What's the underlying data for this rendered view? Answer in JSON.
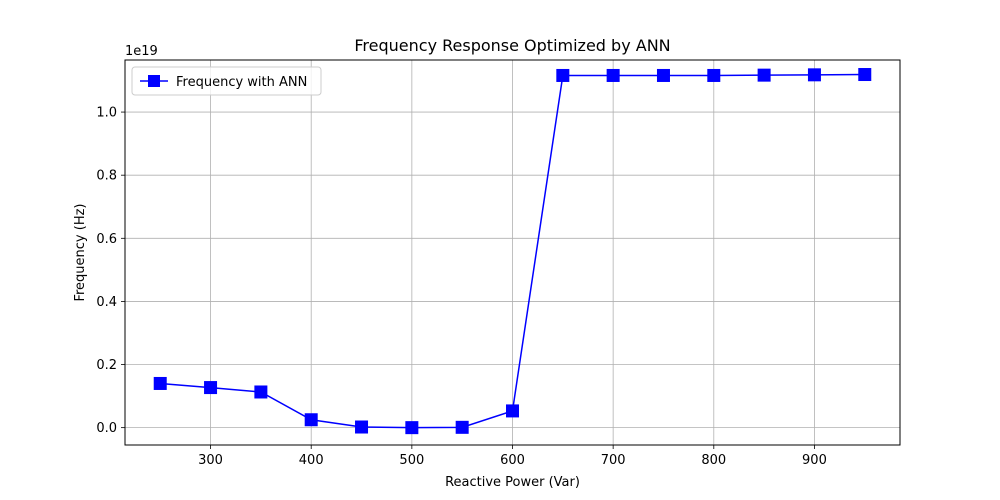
{
  "chart_data": {
    "type": "line",
    "title": "Frequency Response Optimized by ANN",
    "xlabel": "Reactive Power (Var)",
    "ylabel": "Frequency (Hz)",
    "y_offset_label": "1e19",
    "xlim": [
      215,
      985
    ],
    "ylim": [
      -0.055,
      1.165
    ],
    "x_ticks": [
      300,
      400,
      500,
      600,
      700,
      800,
      900
    ],
    "x_tick_labels": [
      "300",
      "400",
      "500",
      "600",
      "700",
      "800",
      "900"
    ],
    "y_ticks": [
      0.0,
      0.2,
      0.4,
      0.6,
      0.8,
      1.0
    ],
    "y_tick_labels": [
      "0.0",
      "0.2",
      "0.4",
      "0.6",
      "0.8",
      "1.0"
    ],
    "grid": true,
    "legend_position": "top-left",
    "series": [
      {
        "name": "Frequency with ANN",
        "color": "#0000ff",
        "marker": "square",
        "x": [
          250,
          300,
          350,
          400,
          450,
          500,
          550,
          600,
          650,
          700,
          750,
          800,
          850,
          900,
          950
        ],
        "y": [
          0.14,
          0.127,
          0.113,
          0.025,
          0.002,
          0.0,
          0.001,
          0.053,
          1.116,
          1.116,
          1.116,
          1.116,
          1.117,
          1.118,
          1.119
        ]
      }
    ]
  }
}
